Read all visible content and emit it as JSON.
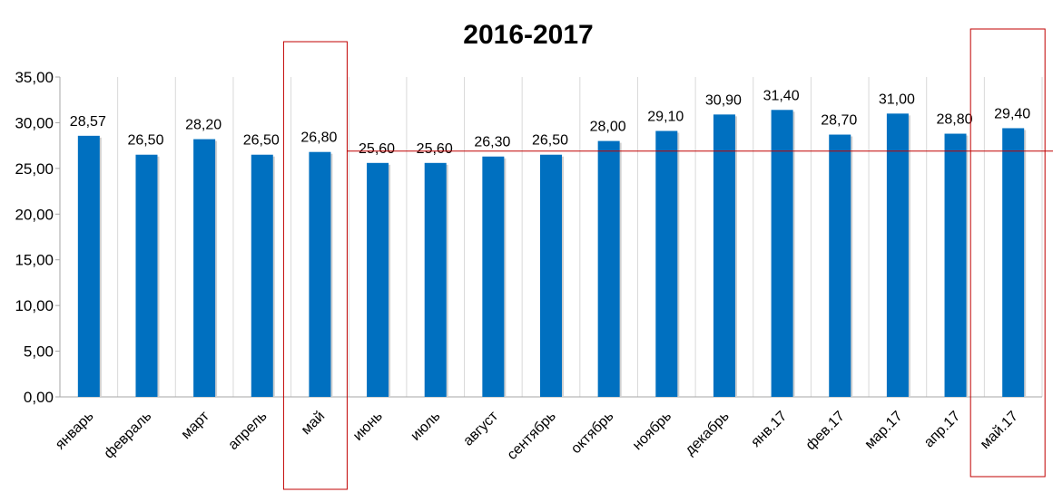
{
  "chart_data": {
    "type": "bar",
    "title": "2016-2017",
    "categories": [
      "январь",
      "февраль",
      "март",
      "апрель",
      "май",
      "июнь",
      "июль",
      "август",
      "сентябрь",
      "октябрь",
      "ноябрь",
      "декабрь",
      "янв.17",
      "фев.17",
      "мар.17",
      "апр.17",
      "май.17"
    ],
    "values": [
      28.57,
      26.5,
      28.2,
      26.5,
      26.8,
      25.6,
      25.6,
      26.3,
      26.5,
      28.0,
      29.1,
      30.9,
      31.4,
      28.7,
      31.0,
      28.8,
      29.4
    ],
    "data_labels": [
      "28,57",
      "26,50",
      "28,20",
      "26,50",
      "26,80",
      "25,60",
      "25,60",
      "26,30",
      "26,50",
      "28,00",
      "29,10",
      "30,90",
      "31,40",
      "28,70",
      "31,00",
      "28,80",
      "29,40"
    ],
    "yticks": [
      "0,00",
      "5,00",
      "10,00",
      "15,00",
      "20,00",
      "25,00",
      "30,00",
      "35,00"
    ],
    "ylim": [
      0,
      35
    ],
    "grid": "vertical",
    "bar_color": "#0070c0",
    "reference_line": {
      "value": 26.8,
      "color": "#c00000"
    },
    "highlighted_categories": [
      "май",
      "май.17"
    ],
    "highlight_color": "#c00000"
  }
}
